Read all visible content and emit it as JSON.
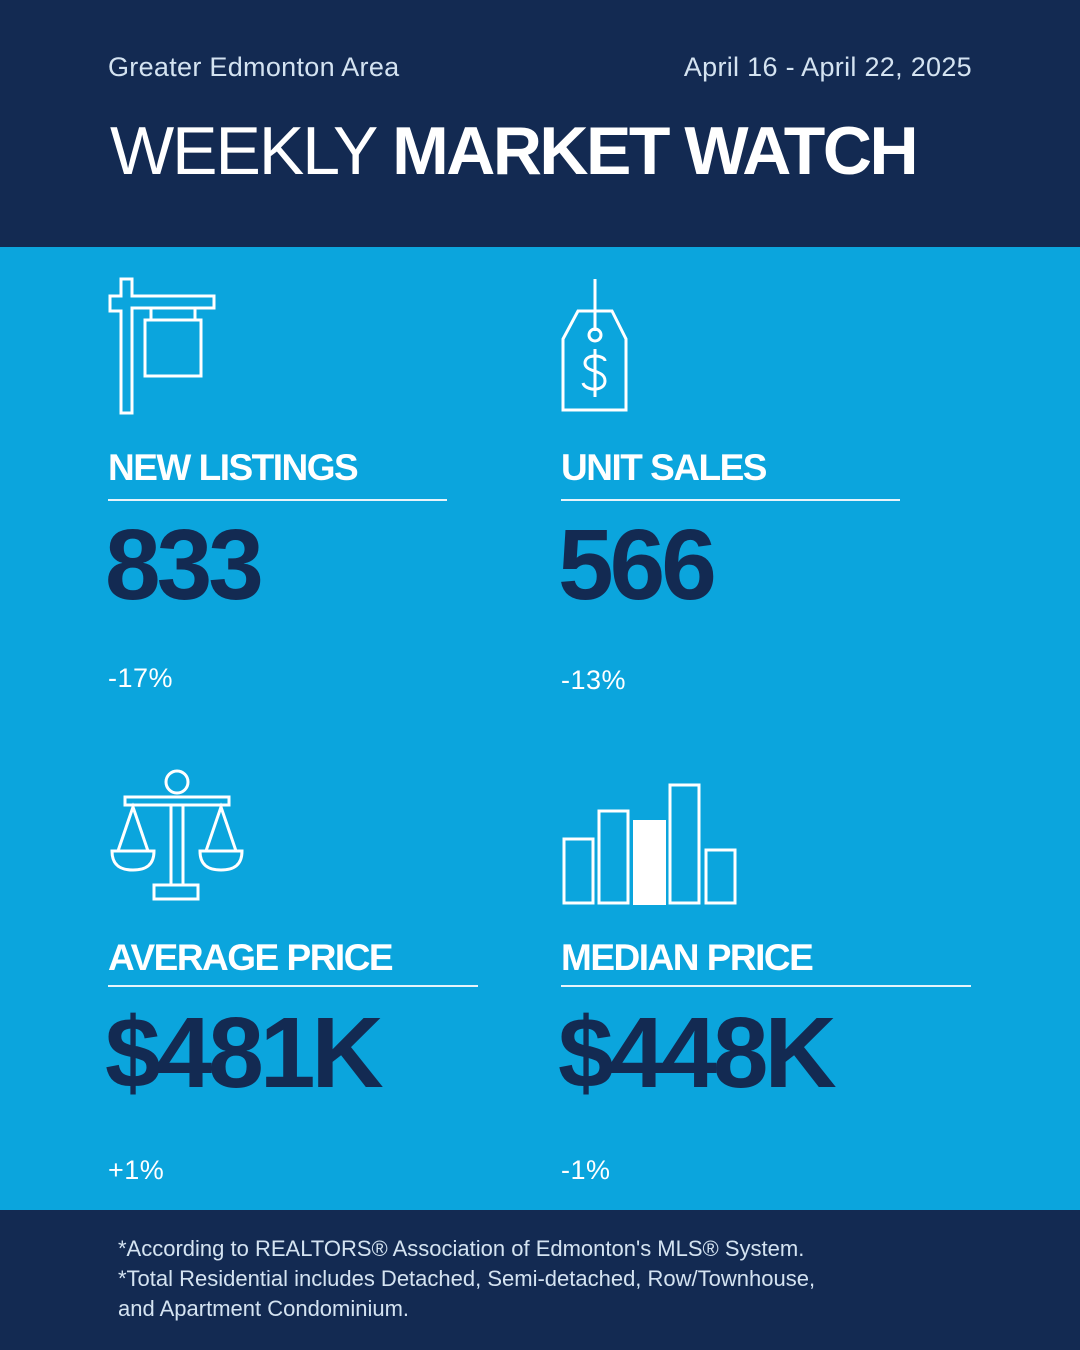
{
  "header": {
    "region": "Greater Edmonton Area",
    "date_range": "April 16 - April 22, 2025",
    "title_light": "WEEKLY",
    "title_bold": "MARKET WATCH"
  },
  "stats": {
    "new_listings": {
      "label": "NEW LISTINGS",
      "value": "833",
      "change": "-17%",
      "icon": "for-sale-sign-icon"
    },
    "unit_sales": {
      "label": "UNIT SALES",
      "value": "566",
      "change": "-13%",
      "icon": "price-tag-icon"
    },
    "average_price": {
      "label": "AVERAGE PRICE",
      "value": "$481K",
      "change": "+1%",
      "icon": "balance-scale-icon"
    },
    "median_price": {
      "label": "MEDIAN PRICE",
      "value": "$448K",
      "change": "-1%",
      "icon": "bar-chart-icon"
    }
  },
  "footer": {
    "lines": [
      "*According to REALTORS® Association of Edmonton's MLS® System.",
      "*Total Residential includes Detached, Semi-detached, Row/Townhouse,",
      "and Apartment Condominium."
    ]
  },
  "colors": {
    "navy": "#132a52",
    "blue": "#0ba5dd",
    "white": "#ffffff"
  }
}
